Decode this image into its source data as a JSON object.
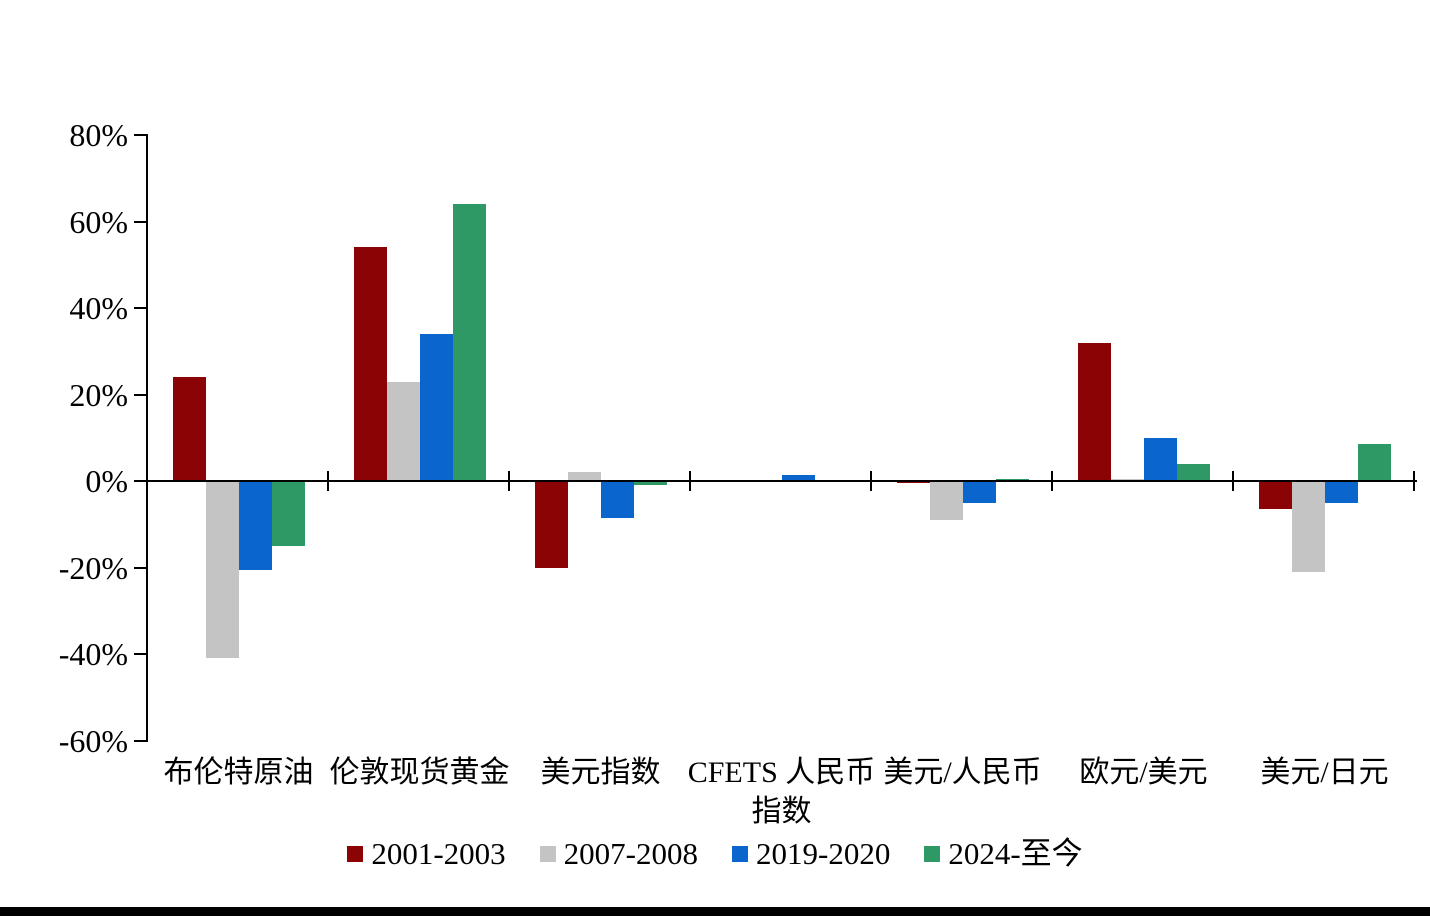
{
  "chart_data": {
    "type": "bar",
    "title": "",
    "categories": [
      "布伦特原油",
      "伦敦现货黄金",
      "美元指数",
      "CFETS 人民币\n指数",
      "美元/人民币",
      "欧元/美元",
      "美元/日元"
    ],
    "series": [
      {
        "name": "2001-2003",
        "color": "#8B0304",
        "values": [
          24,
          54,
          -20,
          0,
          -0.5,
          32,
          -6.5
        ]
      },
      {
        "name": "2007-2008",
        "color": "#C4C4C4",
        "values": [
          -41,
          23,
          2,
          0,
          -9,
          0.5,
          -21
        ]
      },
      {
        "name": "2019-2020",
        "color": "#0A65CC",
        "values": [
          -20.5,
          34,
          -8.5,
          1.5,
          -5,
          10,
          -5
        ]
      },
      {
        "name": "2024-至今",
        "color": "#2F9966",
        "values": [
          -15,
          64,
          -1,
          0,
          0.5,
          4,
          8.5
        ]
      }
    ],
    "ylim": [
      -60,
      80
    ],
    "ytick_step": 20,
    "ytick_labels": [
      "80%",
      "60%",
      "40%",
      "20%",
      "0%",
      "-20%",
      "-40%",
      "-60%"
    ],
    "grid": false,
    "legend_position": "bottom",
    "axis_color": "#000000",
    "text_color": "#000000"
  },
  "footer": {
    "bar_color": "#000000"
  }
}
